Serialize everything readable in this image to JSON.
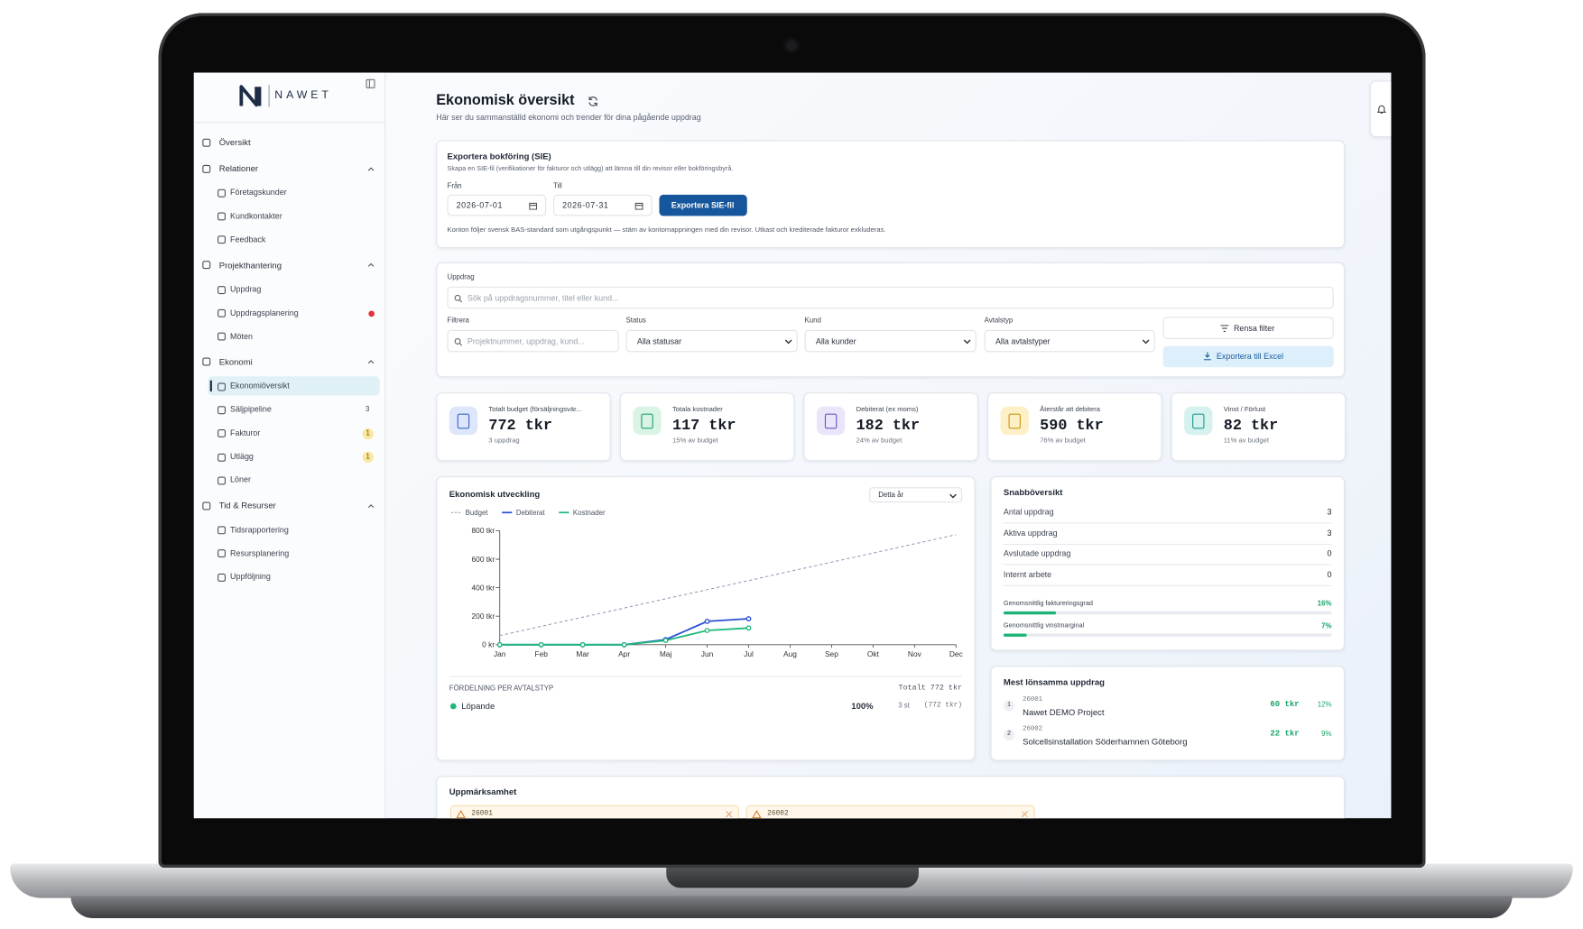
{
  "brand": "NAWET",
  "sidebar": {
    "items": [
      {
        "label": "Översikt"
      },
      {
        "label": "Relationer",
        "children": [
          {
            "label": "Företagskunder"
          },
          {
            "label": "Kundkontakter"
          },
          {
            "label": "Feedback"
          }
        ]
      },
      {
        "label": "Projekthantering",
        "children": [
          {
            "label": "Uppdrag"
          },
          {
            "label": "Uppdragsplanering"
          },
          {
            "label": "Möten"
          }
        ]
      },
      {
        "label": "Ekonomi",
        "children": [
          {
            "label": "Ekonomiöversikt"
          },
          {
            "label": "Säljpipeline",
            "badge": 3
          },
          {
            "label": "Fakturor",
            "badge": 1
          },
          {
            "label": "Utlägg",
            "badge": 1
          },
          {
            "label": "Löner"
          }
        ]
      },
      {
        "label": "Tid & Resurser",
        "children": [
          {
            "label": "Tidsrapportering"
          },
          {
            "label": "Resursplanering"
          },
          {
            "label": "Uppföljning"
          }
        ]
      }
    ]
  },
  "header": {
    "title": "Ekonomisk översikt",
    "subtitle": "Här ser du sammanställd ekonomi och trender för dina pågående uppdrag"
  },
  "export": {
    "title": "Exportera bokföring (SIE)",
    "description": "Skapa en SIE-fil (verifikationer för fakturor och utlägg) att lämna till din revisor eller bokföringsbyrå.",
    "from_label": "Från",
    "from": "2026-07-01",
    "to_label": "Till",
    "to": "2026-07-31",
    "button": "Exportera SIE-fil",
    "note": "Konton följer svensk BAS-standard som utgångspunkt — stäm av kontomappningen med din revisor. Utkast och krediterade fakturor exkluderas."
  },
  "filters": {
    "search_label": "Uppdrag",
    "search_placeholder": "Sök på uppdragsnummer, titel eller kund...",
    "filter_label": "Filtrera",
    "filter_placeholder": "Projektnummer, uppdrag, kund...",
    "status_label": "Status",
    "status": "Alla statusar",
    "customer_label": "Kund",
    "customer": "Alla kunder",
    "contract_label": "Avtalstyp",
    "contract": "Alla avtalstyper",
    "clear": "Rensa filter",
    "export_excel": "Exportera till Excel"
  },
  "kpis": [
    {
      "label": "Totalt budget (försäljningsvär...",
      "value": "772 tkr",
      "sub": "3 uppdrag"
    },
    {
      "label": "Totala kostnader",
      "value": "117 tkr",
      "sub": "15% av budget"
    },
    {
      "label": "Debiterat (ex moms)",
      "value": "182 tkr",
      "sub": "24% av budget"
    },
    {
      "label": "Återstår att debitera",
      "value": "590 tkr",
      "sub": "76% av budget"
    },
    {
      "label": "Vinst / Förlust",
      "value": "82 tkr",
      "sub": "11% av budget"
    }
  ],
  "chart_data": {
    "type": "line",
    "title": "Ekonomisk utveckling",
    "period": "Detta år",
    "categories": [
      "Jan",
      "Feb",
      "Mar",
      "Apr",
      "Maj",
      "Jun",
      "Jul",
      "Aug",
      "Sep",
      "Okt",
      "Nov",
      "Dec"
    ],
    "series": [
      {
        "name": "Budget",
        "color": "#9296b4",
        "dashed": true,
        "values": [
          64,
          129,
          193,
          257,
          322,
          386,
          450,
          515,
          579,
          643,
          708,
          772
        ]
      },
      {
        "name": "Debiterat",
        "color": "#2a4fd6",
        "values": [
          0,
          0,
          0,
          0,
          36,
          164,
          182,
          null,
          null,
          null,
          null,
          null
        ]
      },
      {
        "name": "Kostnader",
        "color": "#1fb87b",
        "values": [
          0,
          0,
          0,
          0,
          30,
          100,
          117,
          null,
          null,
          null,
          null,
          null
        ]
      }
    ],
    "ylim": [
      0,
      800
    ],
    "yticks": [
      {
        "value": 0,
        "label": "0 kr"
      },
      {
        "value": 200,
        "label": "200 tkr"
      },
      {
        "value": 400,
        "label": "400 tkr"
      },
      {
        "value": 600,
        "label": "600 tkr"
      },
      {
        "value": 800,
        "label": "800 tkr"
      }
    ]
  },
  "distribution": {
    "title": "FÖRDELNING PER AVTALSTYP",
    "total": "Totalt 772 tkr",
    "rows": [
      {
        "name": "Löpande",
        "share": "100%",
        "count": "3 st",
        "amount": "(772 tkr)"
      }
    ]
  },
  "quick": {
    "title": "Snabböversikt",
    "rows": [
      {
        "label": "Antal uppdrag",
        "value": 3
      },
      {
        "label": "Aktiva uppdrag",
        "value": 3
      },
      {
        "label": "Avslutade uppdrag",
        "value": 0
      },
      {
        "label": "Internt arbete",
        "value": 0
      }
    ],
    "bars": [
      {
        "label": "Genomsnittlig faktureringsgrad",
        "value": 16,
        "value_label": "16%"
      },
      {
        "label": "Genomsnittlig vinstmarginal",
        "value": 7,
        "value_label": "7%"
      }
    ]
  },
  "top": {
    "title": "Mest lönsamma uppdrag",
    "rows": [
      {
        "rank": 1,
        "number": "26001",
        "name": "Nawet DEMO Project",
        "profit": "60 tkr",
        "margin": "12%"
      },
      {
        "rank": 2,
        "number": "26002",
        "name": "Solcellsinstallation Söderhamnen Göteborg",
        "profit": "22 tkr",
        "margin": "9%"
      }
    ]
  },
  "attention": {
    "title": "Uppmärksamhet",
    "items": [
      "26001",
      "26002"
    ]
  }
}
